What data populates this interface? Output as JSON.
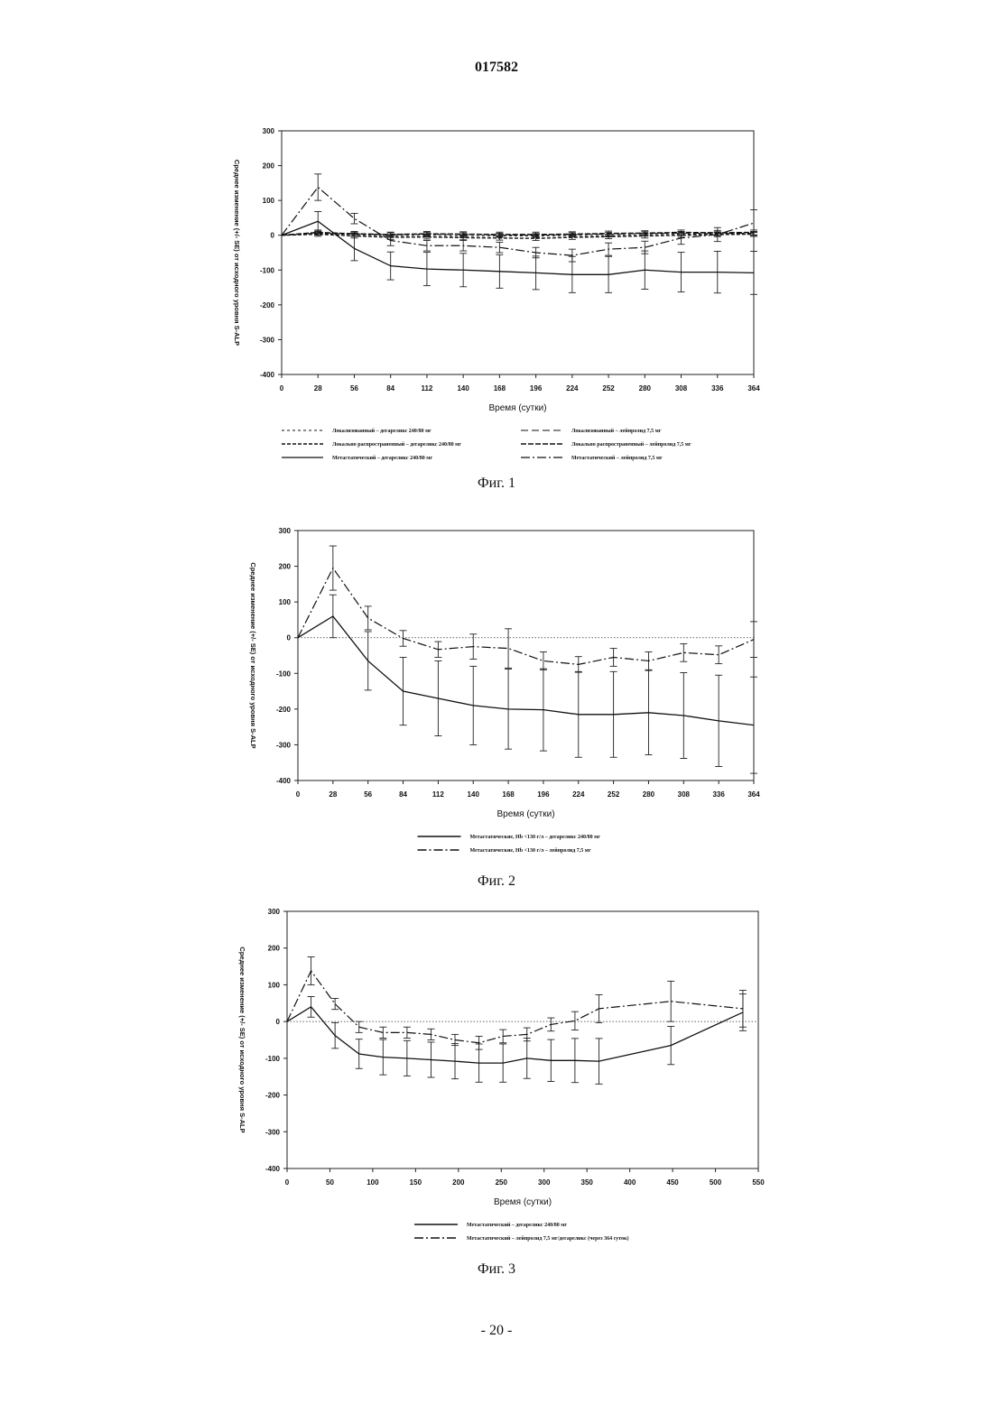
{
  "page": {
    "doc_number": "017582",
    "page_number": "- 20 -"
  },
  "chart_data": [
    {
      "type": "line",
      "caption": "Фиг. 1",
      "xlabel": "Время (сутки)",
      "ylabel": "Среднее изменение (+/- SE) от исходного уровня S-ALP",
      "xlim": [
        0,
        364
      ],
      "ylim": [
        -400,
        300
      ],
      "xticks": [
        0,
        28,
        56,
        84,
        112,
        140,
        168,
        196,
        224,
        252,
        280,
        308,
        336,
        364
      ],
      "yticks": [
        300,
        200,
        100,
        0,
        -100,
        -200,
        -300,
        -400
      ],
      "zero_line": false,
      "x": [
        0,
        28,
        56,
        84,
        112,
        140,
        168,
        196,
        224,
        252,
        280,
        308,
        336,
        364
      ],
      "series": [
        {
          "name": "Локализованный – дегареликс 240/80 мг",
          "style": "dash-short",
          "values": [
            0,
            5,
            2,
            -2,
            0,
            -3,
            -2,
            -2,
            -1,
            -1,
            2,
            3,
            3,
            4
          ],
          "err": [
            0,
            4,
            4,
            4,
            4,
            4,
            4,
            4,
            4,
            4,
            4,
            4,
            4,
            4
          ]
        },
        {
          "name": "Локализованный – лейпролид 7,5 мг",
          "style": "dash-long",
          "values": [
            0,
            6,
            4,
            2,
            3,
            2,
            1,
            0,
            2,
            3,
            5,
            6,
            5,
            6
          ],
          "err": [
            0,
            5,
            5,
            5,
            5,
            5,
            5,
            5,
            5,
            5,
            5,
            5,
            5,
            5
          ]
        },
        {
          "name": "Локально распространенный – дегареликс 240/80 мг",
          "style": "dash-dense",
          "values": [
            0,
            3,
            -2,
            -6,
            -5,
            -7,
            -8,
            -9,
            -6,
            -4,
            -2,
            0,
            2,
            3
          ],
          "err": [
            0,
            6,
            6,
            6,
            6,
            6,
            6,
            6,
            6,
            6,
            6,
            6,
            6,
            6
          ]
        },
        {
          "name": "Локально распространенный – лейпролид 7,5 мг",
          "style": "dash-heavy",
          "values": [
            0,
            8,
            4,
            2,
            4,
            3,
            2,
            2,
            3,
            5,
            6,
            8,
            7,
            8
          ],
          "err": [
            0,
            7,
            7,
            7,
            7,
            7,
            7,
            7,
            7,
            7,
            7,
            7,
            7,
            7
          ]
        },
        {
          "name": "Метастатический – дегареликс 240/80 мг",
          "style": "solid",
          "values": [
            0,
            40,
            -38,
            -88,
            -97,
            -100,
            -104,
            -108,
            -113,
            -113,
            -100,
            -106,
            -106,
            -108
          ],
          "err": [
            0,
            28,
            35,
            40,
            48,
            48,
            48,
            48,
            52,
            52,
            55,
            57,
            60,
            62
          ]
        },
        {
          "name": "Метастатический – лейпролид 7,5 мг",
          "style": "dash-dot",
          "values": [
            0,
            138,
            48,
            -15,
            -30,
            -30,
            -35,
            -50,
            -58,
            -40,
            -35,
            -8,
            2,
            35
          ],
          "err": [
            0,
            38,
            15,
            15,
            15,
            15,
            15,
            15,
            18,
            18,
            18,
            18,
            20,
            38
          ]
        }
      ]
    },
    {
      "type": "line",
      "caption": "Фиг. 2",
      "xlabel": "Время (сутки)",
      "ylabel": "Среднее изменение (+/- SE) от исходного уровня S-ALP",
      "xlim": [
        0,
        364
      ],
      "ylim": [
        -400,
        300
      ],
      "xticks": [
        0,
        28,
        56,
        84,
        112,
        140,
        168,
        196,
        224,
        252,
        280,
        308,
        336,
        364
      ],
      "yticks": [
        300,
        200,
        100,
        0,
        -100,
        -200,
        -300,
        -400
      ],
      "zero_line": true,
      "x": [
        0,
        28,
        56,
        84,
        112,
        140,
        168,
        196,
        224,
        252,
        280,
        308,
        336,
        364
      ],
      "series": [
        {
          "name": "Метастатические, Hb <130 г/л – дегареликс 240/80 мг",
          "style": "solid",
          "values": [
            0,
            60,
            -65,
            -150,
            -170,
            -190,
            -200,
            -202,
            -215,
            -215,
            -210,
            -218,
            -233,
            -245
          ],
          "err": [
            0,
            60,
            82,
            95,
            105,
            110,
            112,
            115,
            120,
            120,
            118,
            120,
            128,
            135
          ]
        },
        {
          "name": "Метастатические, Hb <130 г/л – лейпролид 7,5 мг",
          "style": "dash-dot",
          "values": [
            0,
            195,
            55,
            -2,
            -33,
            -25,
            -30,
            -65,
            -75,
            -55,
            -65,
            -42,
            -48,
            -5
          ],
          "err": [
            0,
            62,
            33,
            22,
            22,
            35,
            55,
            25,
            22,
            25,
            25,
            25,
            25,
            50
          ]
        }
      ]
    },
    {
      "type": "line",
      "caption": "Фиг. 3",
      "xlabel": "Время (сутки)",
      "ylabel": "Среднее изменение (+/- SE) от исходного уровня S-ALP",
      "xlim": [
        0,
        550
      ],
      "ylim": [
        -400,
        300
      ],
      "xticks": [
        0,
        50,
        100,
        150,
        200,
        250,
        300,
        350,
        400,
        450,
        500,
        550
      ],
      "yticks": [
        300,
        200,
        100,
        0,
        -100,
        -200,
        -300,
        -400
      ],
      "zero_line": true,
      "series": [
        {
          "name": "Метастатический – дегареликс 240/80 мг",
          "style": "solid",
          "x": [
            0,
            28,
            56,
            84,
            112,
            140,
            168,
            196,
            224,
            252,
            280,
            308,
            336,
            364,
            448,
            532
          ],
          "values": [
            0,
            40,
            -38,
            -88,
            -97,
            -100,
            -104,
            -108,
            -113,
            -113,
            -100,
            -106,
            -106,
            -108,
            -65,
            25
          ],
          "err": [
            0,
            28,
            35,
            40,
            48,
            48,
            48,
            48,
            52,
            52,
            55,
            57,
            60,
            62,
            52,
            50
          ]
        },
        {
          "name": "Метастатический – лейпролид 7,5 мг/дегареликс (через 364 суток)",
          "style": "dash-dot",
          "x": [
            0,
            28,
            56,
            84,
            112,
            140,
            168,
            196,
            224,
            252,
            280,
            308,
            336,
            364,
            448,
            532
          ],
          "values": [
            0,
            138,
            48,
            -15,
            -30,
            -30,
            -35,
            -50,
            -58,
            -40,
            -35,
            -8,
            2,
            35,
            55,
            35
          ],
          "err": [
            0,
            38,
            15,
            15,
            15,
            15,
            15,
            15,
            18,
            18,
            18,
            18,
            25,
            38,
            55,
            50
          ]
        }
      ]
    }
  ]
}
